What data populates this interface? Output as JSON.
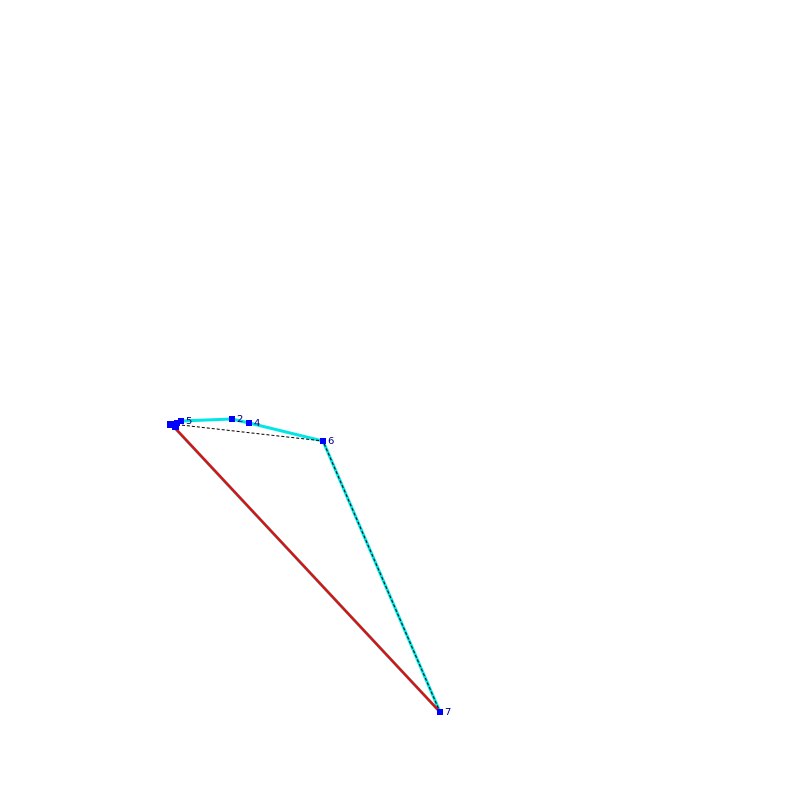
{
  "nodes": [
    {
      "label": "5"
    },
    {
      "label": "2"
    },
    {
      "label": "4"
    },
    {
      "label": "6"
    },
    {
      "label": "7"
    }
  ]
}
